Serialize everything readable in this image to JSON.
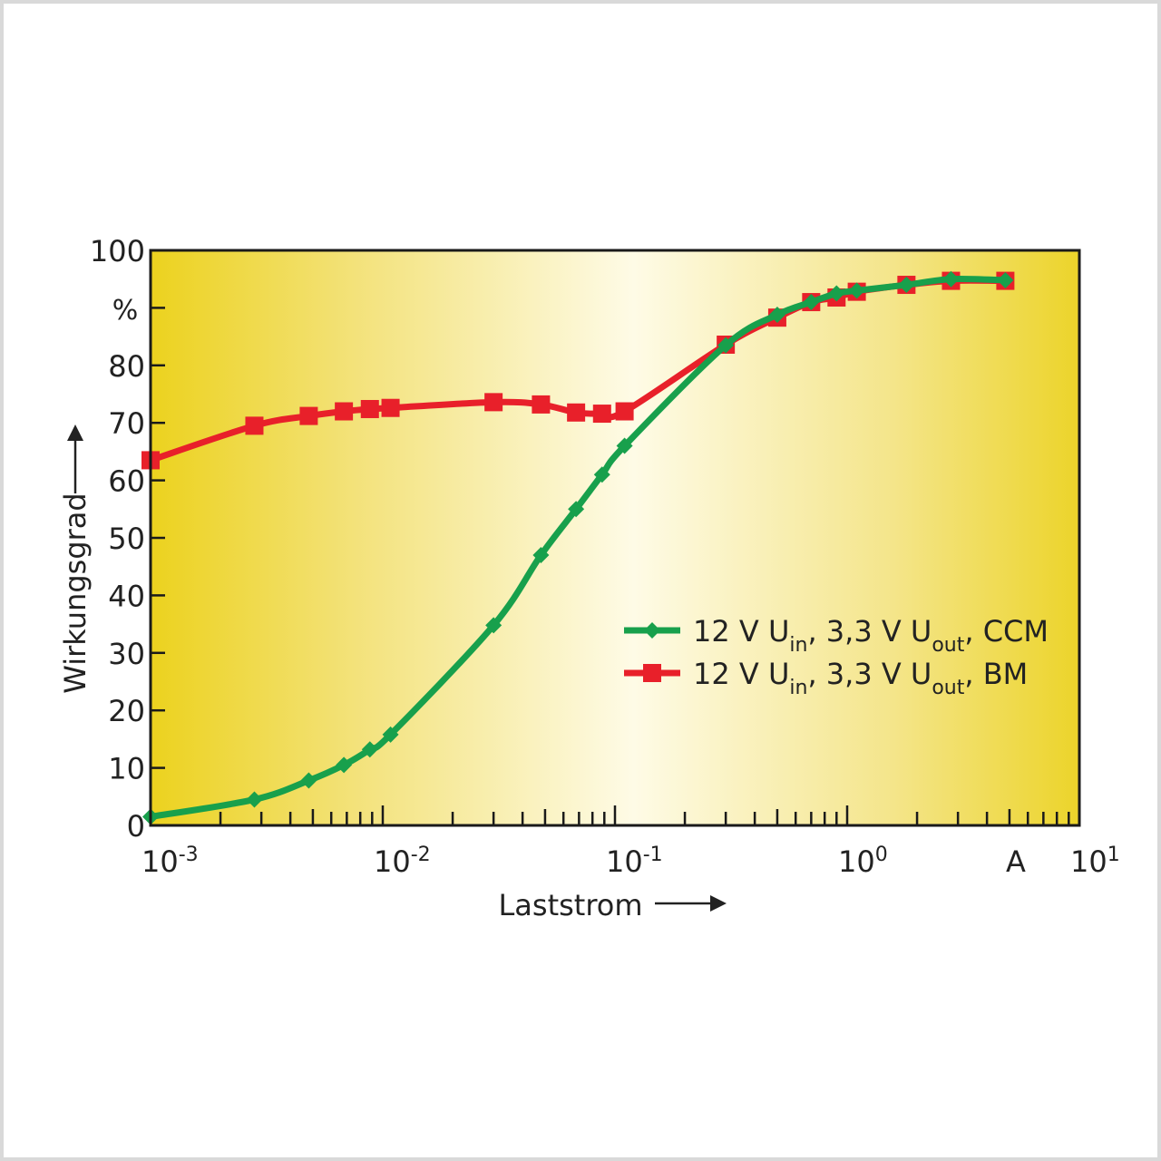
{
  "chart_data": {
    "type": "line",
    "xscale": "log",
    "xlim": [
      0.001,
      10
    ],
    "ylim": [
      0,
      100
    ],
    "xlabel": "Laststrom",
    "ylabel": "Wirkungsgrad",
    "yunit": "%",
    "xunit": "A",
    "grid": false,
    "legend_position": "center-right",
    "x_ticks": [
      {
        "base": "10",
        "exp": "-3",
        "value": 0.001
      },
      {
        "base": "10",
        "exp": "-2",
        "value": 0.01
      },
      {
        "base": "10",
        "exp": "-1",
        "value": 0.1
      },
      {
        "base": "10",
        "exp": "0",
        "value": 1
      },
      {
        "base": "10",
        "exp": "1",
        "value": 10
      }
    ],
    "y_ticks": [
      {
        "label": "0",
        "value": 0
      },
      {
        "label": "10",
        "value": 10
      },
      {
        "label": "20",
        "value": 20
      },
      {
        "label": "30",
        "value": 30
      },
      {
        "label": "40",
        "value": 40
      },
      {
        "label": "50",
        "value": 50
      },
      {
        "label": "60",
        "value": 60
      },
      {
        "label": "70",
        "value": 70
      },
      {
        "label": "80",
        "value": 80
      },
      {
        "label": "100",
        "value": 100
      }
    ],
    "series": [
      {
        "name": "12 V U_in, 3,3 V U_out, CCM",
        "legend": {
          "pre": "12 V U",
          "sub1": "in",
          "mid": ", 3,3 V U",
          "sub2": "out",
          "post": ", CCM"
        },
        "color": "#18a04c",
        "marker": "diamond",
        "points": [
          [
            0.001,
            1.5
          ],
          [
            0.0028,
            4.5
          ],
          [
            0.0048,
            7.8
          ],
          [
            0.0068,
            10.5
          ],
          [
            0.0088,
            13.2
          ],
          [
            0.0108,
            15.8
          ],
          [
            0.03,
            34.8
          ],
          [
            0.048,
            47
          ],
          [
            0.068,
            55
          ],
          [
            0.088,
            61
          ],
          [
            0.11,
            66
          ],
          [
            0.3,
            83.5
          ],
          [
            0.5,
            88.8
          ],
          [
            0.7,
            91
          ],
          [
            0.9,
            92.5
          ],
          [
            1.1,
            93
          ],
          [
            1.8,
            94
          ],
          [
            2.8,
            95
          ],
          [
            4.8,
            94.8
          ]
        ]
      },
      {
        "name": "12 V U_in, 3,3 V U_out, BM",
        "legend": {
          "pre": "12 V U",
          "sub1": "in",
          "mid": ", 3,3 V U",
          "sub2": "out",
          "post": ", BM"
        },
        "color": "#e8202a",
        "marker": "square",
        "points": [
          [
            0.001,
            63.5
          ],
          [
            0.0028,
            69.5
          ],
          [
            0.0048,
            71.2
          ],
          [
            0.0068,
            72
          ],
          [
            0.0088,
            72.4
          ],
          [
            0.0108,
            72.6
          ],
          [
            0.03,
            73.6
          ],
          [
            0.048,
            73.2
          ],
          [
            0.068,
            71.8
          ],
          [
            0.088,
            71.6
          ],
          [
            0.11,
            72
          ],
          [
            0.3,
            83.6
          ],
          [
            0.5,
            88.3
          ],
          [
            0.7,
            91
          ],
          [
            0.9,
            91.8
          ],
          [
            1.1,
            92.8
          ],
          [
            1.8,
            94
          ],
          [
            2.8,
            94.7
          ],
          [
            4.8,
            94.7
          ]
        ]
      }
    ]
  }
}
